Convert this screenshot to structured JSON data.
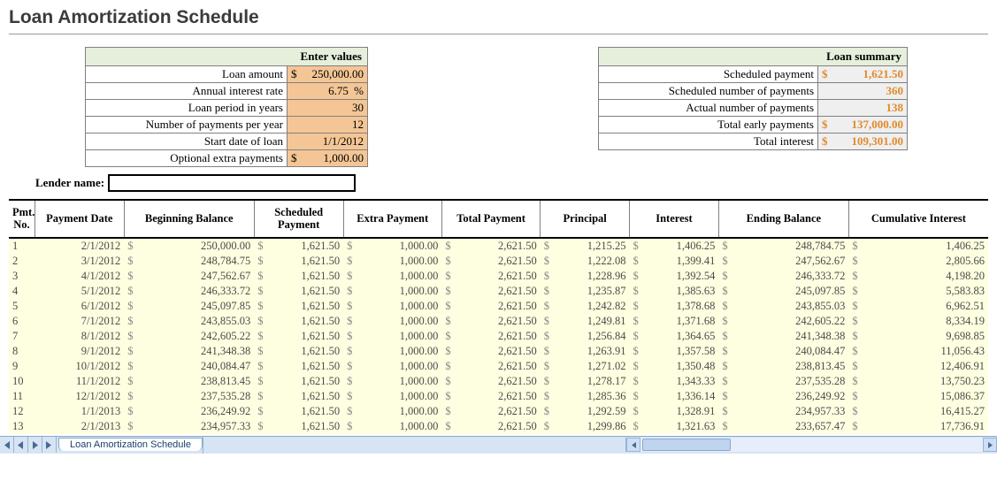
{
  "title": "Loan Amortization Schedule",
  "colors": {
    "input_bg": "#f4c695",
    "summary_value": "#e08b2c",
    "row_bg": "#feffe0",
    "panel_header_bg": "#e6efdc",
    "tabbar_bg": "#d6e4f4"
  },
  "inputs_panel": {
    "header": "Enter values",
    "rows": [
      {
        "label": "Loan amount",
        "prefix": "$",
        "value": "250,000.00",
        "suffix": ""
      },
      {
        "label": "Annual interest rate",
        "prefix": "",
        "value": "6.75",
        "suffix": "%"
      },
      {
        "label": "Loan period in years",
        "prefix": "",
        "value": "30",
        "suffix": ""
      },
      {
        "label": "Number of payments per year",
        "prefix": "",
        "value": "12",
        "suffix": ""
      },
      {
        "label": "Start date of loan",
        "prefix": "",
        "value": "1/1/2012",
        "suffix": ""
      },
      {
        "label": "Optional extra payments",
        "prefix": "$",
        "value": "1,000.00",
        "suffix": ""
      }
    ]
  },
  "summary_panel": {
    "header": "Loan summary",
    "rows": [
      {
        "label": "Scheduled payment",
        "prefix": "$",
        "value": "1,621.50"
      },
      {
        "label": "Scheduled number of payments",
        "prefix": "",
        "value": "360"
      },
      {
        "label": "Actual number of payments",
        "prefix": "",
        "value": "138"
      },
      {
        "label": "Total early payments",
        "prefix": "$",
        "value": "137,000.00"
      },
      {
        "label": "Total interest",
        "prefix": "$",
        "value": "109,301.00"
      }
    ]
  },
  "lender": {
    "label": "Lender name:",
    "value": ""
  },
  "schedule": {
    "columns": [
      "Pmt. No.",
      "Payment Date",
      "Beginning Balance",
      "Scheduled Payment",
      "Extra Payment",
      "Total Payment",
      "Principal",
      "Interest",
      "Ending Balance",
      "Cumulative Interest"
    ],
    "rows": [
      {
        "no": "1",
        "date": "2/1/2012",
        "beg": "250,000.00",
        "sched": "1,621.50",
        "extra": "1,000.00",
        "total": "2,621.50",
        "prin": "1,215.25",
        "int": "1,406.25",
        "end": "248,784.75",
        "cum": "1,406.25"
      },
      {
        "no": "2",
        "date": "3/1/2012",
        "beg": "248,784.75",
        "sched": "1,621.50",
        "extra": "1,000.00",
        "total": "2,621.50",
        "prin": "1,222.08",
        "int": "1,399.41",
        "end": "247,562.67",
        "cum": "2,805.66"
      },
      {
        "no": "3",
        "date": "4/1/2012",
        "beg": "247,562.67",
        "sched": "1,621.50",
        "extra": "1,000.00",
        "total": "2,621.50",
        "prin": "1,228.96",
        "int": "1,392.54",
        "end": "246,333.72",
        "cum": "4,198.20"
      },
      {
        "no": "4",
        "date": "5/1/2012",
        "beg": "246,333.72",
        "sched": "1,621.50",
        "extra": "1,000.00",
        "total": "2,621.50",
        "prin": "1,235.87",
        "int": "1,385.63",
        "end": "245,097.85",
        "cum": "5,583.83"
      },
      {
        "no": "5",
        "date": "6/1/2012",
        "beg": "245,097.85",
        "sched": "1,621.50",
        "extra": "1,000.00",
        "total": "2,621.50",
        "prin": "1,242.82",
        "int": "1,378.68",
        "end": "243,855.03",
        "cum": "6,962.51"
      },
      {
        "no": "6",
        "date": "7/1/2012",
        "beg": "243,855.03",
        "sched": "1,621.50",
        "extra": "1,000.00",
        "total": "2,621.50",
        "prin": "1,249.81",
        "int": "1,371.68",
        "end": "242,605.22",
        "cum": "8,334.19"
      },
      {
        "no": "7",
        "date": "8/1/2012",
        "beg": "242,605.22",
        "sched": "1,621.50",
        "extra": "1,000.00",
        "total": "2,621.50",
        "prin": "1,256.84",
        "int": "1,364.65",
        "end": "241,348.38",
        "cum": "9,698.85"
      },
      {
        "no": "8",
        "date": "9/1/2012",
        "beg": "241,348.38",
        "sched": "1,621.50",
        "extra": "1,000.00",
        "total": "2,621.50",
        "prin": "1,263.91",
        "int": "1,357.58",
        "end": "240,084.47",
        "cum": "11,056.43"
      },
      {
        "no": "9",
        "date": "10/1/2012",
        "beg": "240,084.47",
        "sched": "1,621.50",
        "extra": "1,000.00",
        "total": "2,621.50",
        "prin": "1,271.02",
        "int": "1,350.48",
        "end": "238,813.45",
        "cum": "12,406.91"
      },
      {
        "no": "10",
        "date": "11/1/2012",
        "beg": "238,813.45",
        "sched": "1,621.50",
        "extra": "1,000.00",
        "total": "2,621.50",
        "prin": "1,278.17",
        "int": "1,343.33",
        "end": "237,535.28",
        "cum": "13,750.23"
      },
      {
        "no": "11",
        "date": "12/1/2012",
        "beg": "237,535.28",
        "sched": "1,621.50",
        "extra": "1,000.00",
        "total": "2,621.50",
        "prin": "1,285.36",
        "int": "1,336.14",
        "end": "236,249.92",
        "cum": "15,086.37"
      },
      {
        "no": "12",
        "date": "1/1/2013",
        "beg": "236,249.92",
        "sched": "1,621.50",
        "extra": "1,000.00",
        "total": "2,621.50",
        "prin": "1,292.59",
        "int": "1,328.91",
        "end": "234,957.33",
        "cum": "16,415.27"
      },
      {
        "no": "13",
        "date": "2/1/2013",
        "beg": "234,957.33",
        "sched": "1,621.50",
        "extra": "1,000.00",
        "total": "2,621.50",
        "prin": "1,299.86",
        "int": "1,321.63",
        "end": "233,657.47",
        "cum": "17,736.91"
      }
    ]
  },
  "sheet_tab": {
    "name": "Loan Amortization Schedule"
  }
}
